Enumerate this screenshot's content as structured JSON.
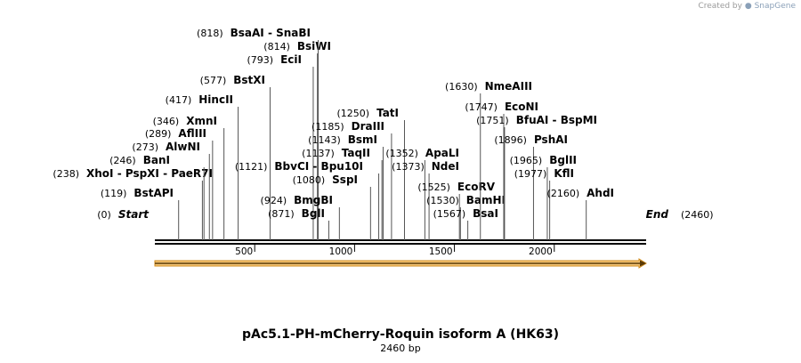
{
  "credit": {
    "prefix": "Created by",
    "brand": "SnapGene"
  },
  "plasmid": {
    "name": "pAc5.1-PH-mCherry-Roquin isoform A (HK63)",
    "length_label": "2460 bp",
    "length": 2460
  },
  "axis": {
    "ticks": [
      500,
      1000,
      1500,
      2000
    ]
  },
  "colors": {
    "feature_fill": "#f5c67a",
    "feature_stroke": "#d08a17",
    "arrow": "#5a3a05"
  },
  "feature": {
    "start": 0,
    "end": 2460
  },
  "sites": [
    {
      "name": "Start",
      "pos": 0,
      "pos_label": "(0)",
      "italic": true
    },
    {
      "name": "BstAPI",
      "pos": 119,
      "pos_label": "(119)"
    },
    {
      "name": "XhoI  - PspXI  - PaeR7I",
      "pos": 238,
      "pos_label": "(238)"
    },
    {
      "name": "BanI",
      "pos": 246,
      "pos_label": "(246)"
    },
    {
      "name": "AlwNI",
      "pos": 273,
      "pos_label": "(273)"
    },
    {
      "name": "AflIII",
      "pos": 289,
      "pos_label": "(289)"
    },
    {
      "name": "XmnI",
      "pos": 346,
      "pos_label": "(346)"
    },
    {
      "name": "HincII",
      "pos": 417,
      "pos_label": "(417)"
    },
    {
      "name": "BstXI",
      "pos": 577,
      "pos_label": "(577)"
    },
    {
      "name": "EciI",
      "pos": 793,
      "pos_label": "(793)"
    },
    {
      "name": "BsiWI",
      "pos": 814,
      "pos_label": "(814)"
    },
    {
      "name": "BsaAI  - SnaBI",
      "pos": 818,
      "pos_label": "(818)"
    },
    {
      "name": "BglI",
      "pos": 871,
      "pos_label": "(871)"
    },
    {
      "name": "BmgBI",
      "pos": 924,
      "pos_label": "(924)"
    },
    {
      "name": "SspI",
      "pos": 1080,
      "pos_label": "(1080)"
    },
    {
      "name": "BbvCI  - Bpu10I",
      "pos": 1121,
      "pos_label": "(1121)"
    },
    {
      "name": "TaqII",
      "pos": 1137,
      "pos_label": "(1137)"
    },
    {
      "name": "BsmI",
      "pos": 1143,
      "pos_label": "(1143)"
    },
    {
      "name": "DraIII",
      "pos": 1185,
      "pos_label": "(1185)"
    },
    {
      "name": "TatI",
      "pos": 1250,
      "pos_label": "(1250)"
    },
    {
      "name": "ApaLI",
      "pos": 1352,
      "pos_label": "(1352)"
    },
    {
      "name": "NdeI",
      "pos": 1373,
      "pos_label": "(1373)"
    },
    {
      "name": "EcoRV",
      "pos": 1525,
      "pos_label": "(1525)"
    },
    {
      "name": "BamHI",
      "pos": 1530,
      "pos_label": "(1530)"
    },
    {
      "name": "BsaI",
      "pos": 1567,
      "pos_label": "(1567)"
    },
    {
      "name": "NmeAIII",
      "pos": 1630,
      "pos_label": "(1630)"
    },
    {
      "name": "EcoNI",
      "pos": 1747,
      "pos_label": "(1747)"
    },
    {
      "name": "BfuAI  - BspMI",
      "pos": 1751,
      "pos_label": "(1751)"
    },
    {
      "name": "PshAI",
      "pos": 1896,
      "pos_label": "(1896)"
    },
    {
      "name": "BglII",
      "pos": 1965,
      "pos_label": "(1965)"
    },
    {
      "name": "KflI",
      "pos": 1977,
      "pos_label": "(1977)"
    },
    {
      "name": "AhdI",
      "pos": 2160,
      "pos_label": "(2160)"
    },
    {
      "name": "End",
      "pos": 2460,
      "pos_label": "(2460)",
      "italic": true
    }
  ]
}
